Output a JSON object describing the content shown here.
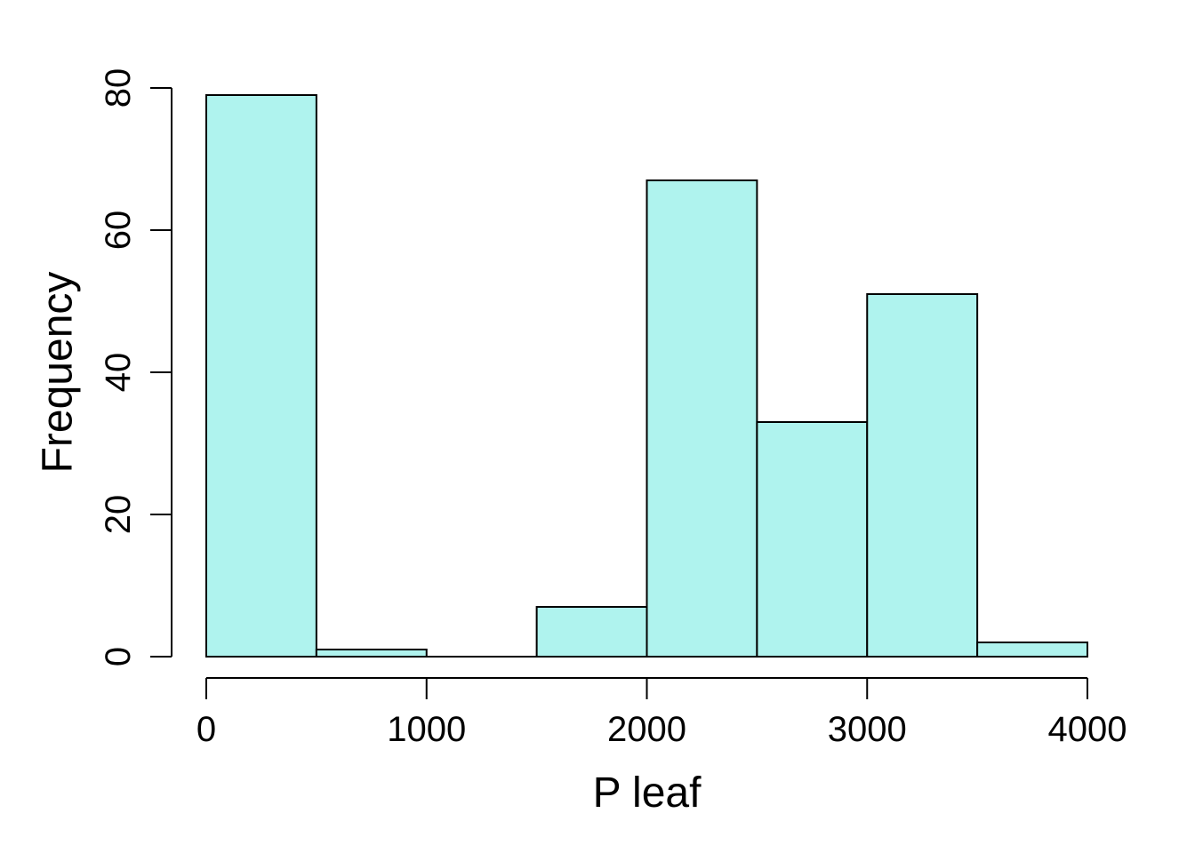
{
  "chart_data": {
    "type": "bar",
    "chart_kind": "histogram",
    "title": "",
    "xlabel": "P leaf",
    "ylabel": "Frequency",
    "bins": [
      {
        "start": 0,
        "end": 500,
        "count": 79
      },
      {
        "start": 500,
        "end": 1000,
        "count": 1
      },
      {
        "start": 1000,
        "end": 1500,
        "count": 0
      },
      {
        "start": 1500,
        "end": 2000,
        "count": 7
      },
      {
        "start": 2000,
        "end": 2500,
        "count": 67
      },
      {
        "start": 2500,
        "end": 3000,
        "count": 33
      },
      {
        "start": 3000,
        "end": 3500,
        "count": 51
      },
      {
        "start": 3500,
        "end": 4000,
        "count": 2
      }
    ],
    "xlim": [
      0,
      4000
    ],
    "ylim": [
      0,
      80
    ],
    "x_ticks": [
      {
        "value": 0,
        "label": "0"
      },
      {
        "value": 1000,
        "label": "1000"
      },
      {
        "value": 2000,
        "label": "2000"
      },
      {
        "value": 3000,
        "label": "3000"
      },
      {
        "value": 4000,
        "label": "4000"
      }
    ],
    "y_ticks": [
      {
        "value": 0,
        "label": "0"
      },
      {
        "value": 20,
        "label": "20"
      },
      {
        "value": 40,
        "label": "40"
      },
      {
        "value": 60,
        "label": "60"
      },
      {
        "value": 80,
        "label": "80"
      }
    ],
    "bar_color": "#AFF3EE",
    "grid": false,
    "legend": "none"
  }
}
